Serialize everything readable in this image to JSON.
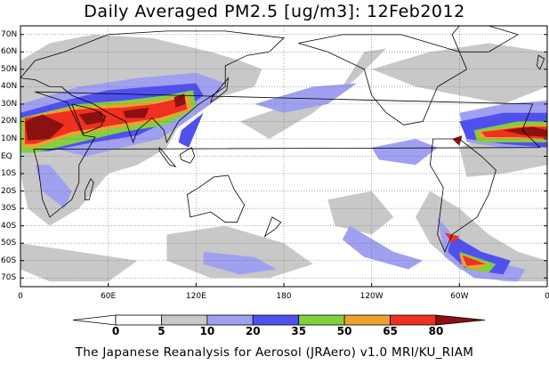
{
  "title": "Daily Averaged PM2.5 [ug/m3]: 12Feb2012",
  "credit": "The Japanese Reanalysis for Aerosol (JRAero) v1.0 MRI/KU_RIAM",
  "map": {
    "lon_range": [
      0,
      360
    ],
    "lat_range": [
      -75,
      75
    ],
    "grid": true,
    "lat_labels": [
      "70N",
      "60N",
      "50N",
      "40N",
      "30N",
      "20N",
      "10N",
      "EQ",
      "10S",
      "20S",
      "30S",
      "40S",
      "50S",
      "60S",
      "70S"
    ],
    "lat_values": [
      70,
      60,
      50,
      40,
      30,
      20,
      10,
      0,
      -10,
      -20,
      -30,
      -40,
      -50,
      -60,
      -70
    ],
    "lon_labels": [
      "0",
      "60E",
      "120E",
      "180",
      "120W",
      "60W",
      "0"
    ],
    "lon_values": [
      0,
      60,
      120,
      180,
      240,
      300,
      360
    ],
    "ocean_color": "#ffffff",
    "coast_color": "#000000"
  },
  "colorbar": {
    "levels": [
      "0",
      "5",
      "10",
      "20",
      "35",
      "50",
      "65",
      "80"
    ],
    "colors": [
      "#ffffff",
      "#c8c8c8",
      "#a0a0f0",
      "#5050f0",
      "#80d040",
      "#f0a030",
      "#f03020",
      "#8c1010"
    ]
  },
  "pm25_plumes": [
    {
      "region": "North Africa Sahara",
      "level": 80
    },
    {
      "region": "Arabia",
      "level": 80
    },
    {
      "region": "Indo-Gangetic Plain",
      "level": 80
    },
    {
      "region": "Eastern China",
      "level": 80
    },
    {
      "region": "Southeast Asia",
      "level": 65
    },
    {
      "region": "Tropical North Atlantic",
      "level": 80
    },
    {
      "region": "Northern South America",
      "level": 65
    },
    {
      "region": "Southern South America",
      "level": 65
    },
    {
      "region": "South Atlantic",
      "level": 50
    }
  ]
}
